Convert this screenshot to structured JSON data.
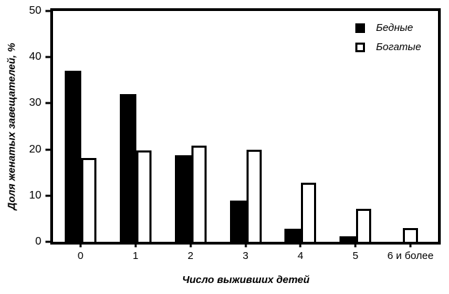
{
  "chart_data": {
    "type": "bar",
    "title": "",
    "categories": [
      "0",
      "1",
      "2",
      "3",
      "4",
      "5",
      "6 и более"
    ],
    "series": [
      {
        "key": "poor",
        "name": "Бедные",
        "style": "solid",
        "color": "#000000",
        "values": [
          37,
          32,
          18.8,
          9,
          2.8,
          1.2,
          0
        ]
      },
      {
        "key": "rich",
        "name": "Богатые",
        "style": "outlined",
        "color": "#ffffff",
        "values": [
          18.2,
          19.8,
          20.8,
          19.9,
          12.8,
          7.1,
          3.0
        ]
      }
    ],
    "xlabel": "Число выживших детей",
    "ylabel": "Доля женатых завещателей, %",
    "ylim": [
      0,
      50
    ],
    "yticks": [
      0,
      10,
      20,
      30,
      40,
      50
    ],
    "grid": false,
    "legend_position": "top-right",
    "axis_color": "#000000",
    "background_color": "#ffffff"
  }
}
